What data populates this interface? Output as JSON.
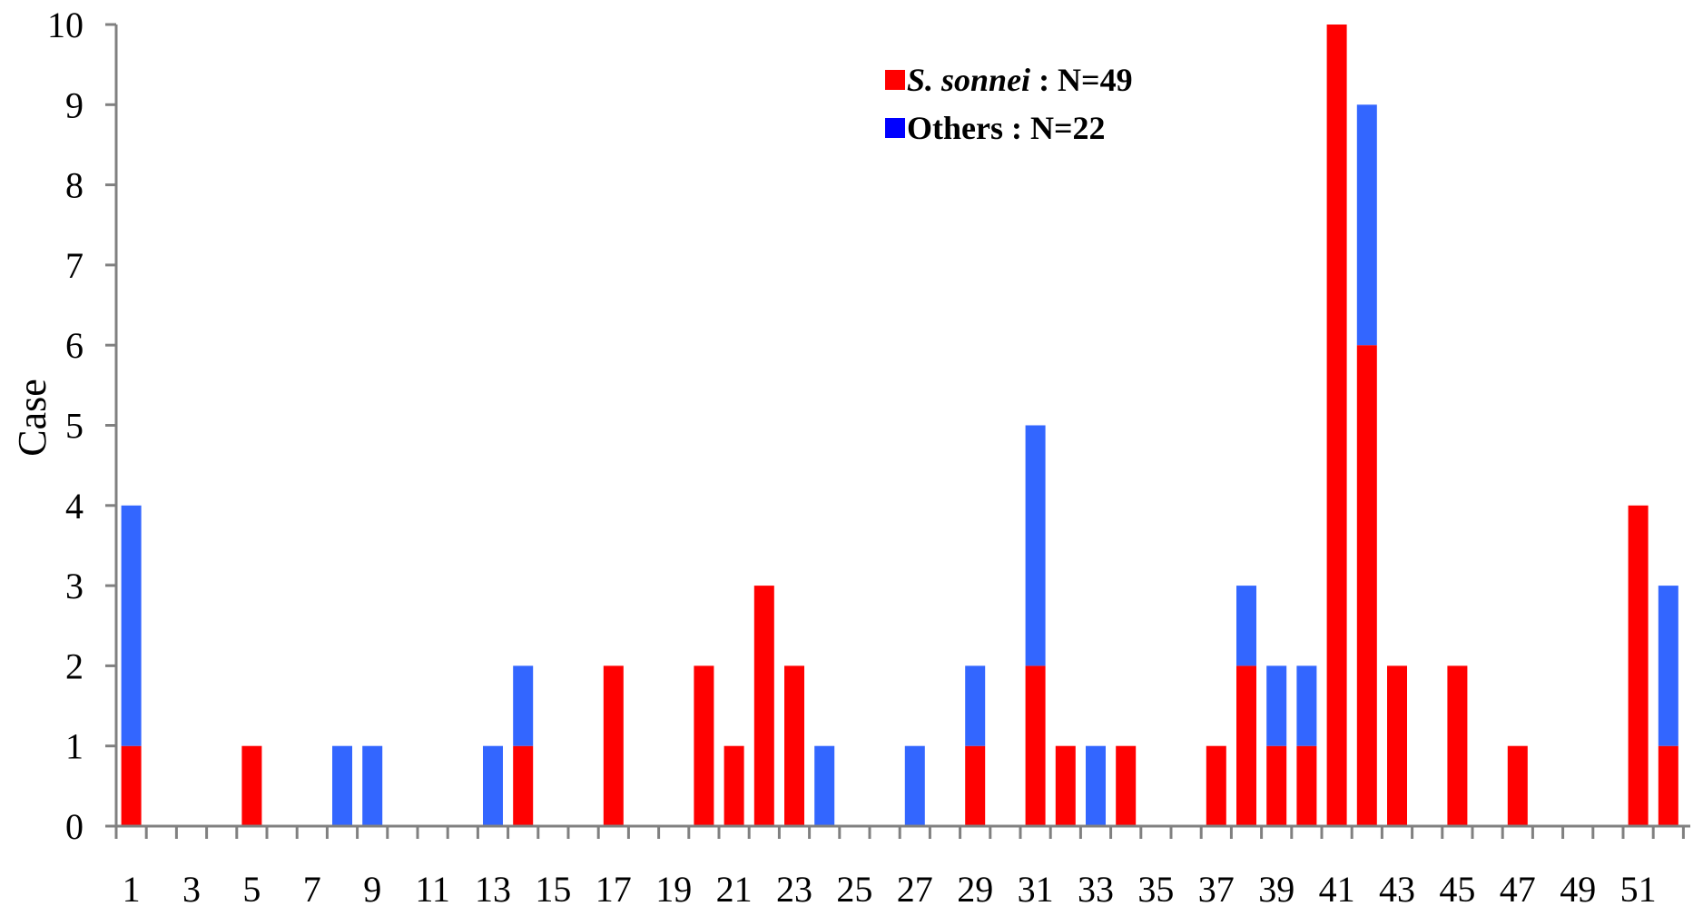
{
  "chart_data": {
    "type": "bar",
    "stacked": true,
    "ylabel": "Case",
    "xlabel": "",
    "ylim": [
      0,
      10
    ],
    "yticks": [
      0,
      1,
      2,
      3,
      4,
      5,
      6,
      7,
      8,
      9,
      10
    ],
    "x": [
      1,
      2,
      3,
      4,
      5,
      6,
      7,
      8,
      9,
      10,
      11,
      12,
      13,
      14,
      15,
      16,
      17,
      18,
      19,
      20,
      21,
      22,
      23,
      24,
      25,
      26,
      27,
      28,
      29,
      30,
      31,
      32,
      33,
      34,
      35,
      36,
      37,
      38,
      39,
      40,
      41,
      42,
      43,
      44,
      45,
      46,
      47,
      48,
      49,
      50,
      51,
      52
    ],
    "xtick_labels": [
      "1",
      "3",
      "5",
      "7",
      "9",
      "11",
      "13",
      "15",
      "17",
      "19",
      "21",
      "23",
      "25",
      "27",
      "29",
      "31",
      "33",
      "35",
      "37",
      "39",
      "41",
      "43",
      "45",
      "47",
      "49",
      "51"
    ],
    "series": [
      {
        "name_italic": "S. sonnei",
        "name_suffix": " : N=49",
        "color": "#ff0000",
        "values": [
          1,
          0,
          0,
          0,
          1,
          0,
          0,
          0,
          0,
          0,
          0,
          0,
          0,
          1,
          0,
          0,
          2,
          0,
          0,
          2,
          1,
          3,
          2,
          0,
          0,
          0,
          0,
          0,
          1,
          0,
          2,
          1,
          0,
          1,
          0,
          0,
          1,
          2,
          1,
          1,
          10,
          6,
          2,
          0,
          2,
          0,
          1,
          0,
          0,
          0,
          4,
          1
        ]
      },
      {
        "name": "Others  : N=22",
        "color": "#3366ff",
        "legend_color": "#0000ff",
        "values": [
          3,
          0,
          0,
          0,
          0,
          0,
          0,
          1,
          1,
          0,
          0,
          0,
          1,
          1,
          0,
          0,
          0,
          0,
          0,
          0,
          0,
          0,
          0,
          1,
          0,
          0,
          1,
          0,
          1,
          0,
          3,
          0,
          1,
          0,
          0,
          0,
          0,
          1,
          1,
          1,
          0,
          3,
          0,
          0,
          0,
          0,
          0,
          0,
          0,
          0,
          0,
          2
        ]
      }
    ],
    "grid": false,
    "legend_position": "top-center"
  }
}
